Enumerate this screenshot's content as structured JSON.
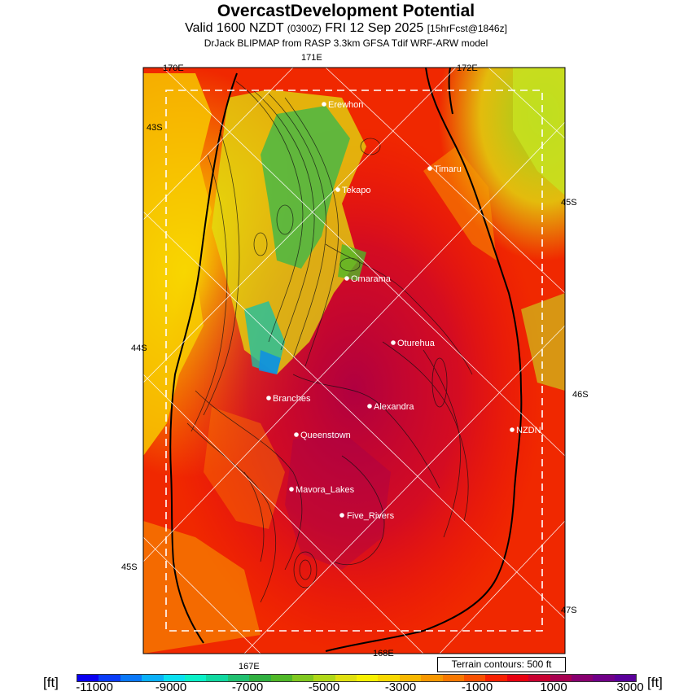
{
  "header": {
    "title": "OvercastDevelopment Potential",
    "valid_prefix": "Valid 1600 NZDT",
    "valid_utc": "(0300Z)",
    "valid_date": "FRI 12 Sep 2025",
    "forecast": "[15hrFcst@1846z]",
    "model_line": "DrJack BLIPMAP from RASP 3.3km GFSA Tdif WRF-ARW model"
  },
  "grid_labels": {
    "lon_171E": "171E",
    "lon_170E": "170E",
    "lon_172E": "172E",
    "lon_167E": "167E",
    "lon_168E": "168E",
    "lat_43S": "43S",
    "lat_44S": "44S",
    "lat_45S_left": "45S",
    "lat_45S_right": "45S",
    "lat_46S": "46S",
    "lat_47S": "47S"
  },
  "places": [
    {
      "name": "Erewhon"
    },
    {
      "name": "Timaru"
    },
    {
      "name": "Tekapo"
    },
    {
      "name": "Omarama"
    },
    {
      "name": "Oturehua"
    },
    {
      "name": "Branches"
    },
    {
      "name": "Alexandra"
    },
    {
      "name": "NZDN"
    },
    {
      "name": "Queenstown"
    },
    {
      "name": "Mavora_Lakes"
    },
    {
      "name": "Five_Rivers"
    }
  ],
  "terrain_note": "Terrain contours: 500 ft",
  "legend": {
    "unit_left": "[ft]",
    "unit_right": "[ft]",
    "ticks": [
      "-11000",
      "-9000",
      "-7000",
      "-5000",
      "-3000",
      "-1000",
      "1000",
      "3000"
    ],
    "colors": [
      "#0a00f0",
      "#0a3cf8",
      "#0a78f8",
      "#0ab0f8",
      "#0ae0f0",
      "#0af0c8",
      "#10d8a0",
      "#20c070",
      "#30b040",
      "#50b828",
      "#80c820",
      "#b0d818",
      "#e0e010",
      "#f8f000",
      "#f8d800",
      "#f8b800",
      "#f89800",
      "#f87800",
      "#f85000",
      "#f82000",
      "#e80010",
      "#c80030",
      "#a80050",
      "#880070",
      "#700088",
      "#5a009a"
    ]
  }
}
